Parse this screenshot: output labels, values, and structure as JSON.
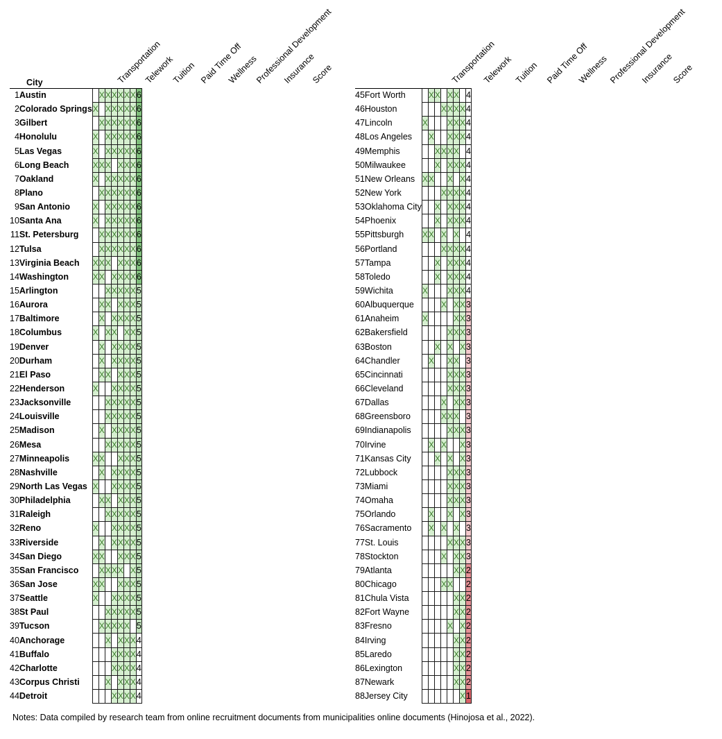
{
  "headers": {
    "city": "City",
    "columns": [
      "Transportation",
      "Telework",
      "Tuition",
      "Paid Time Off",
      "Wellness",
      "Professional Development",
      "Insurance",
      "Score"
    ]
  },
  "mark": "X",
  "left_rows": [
    {
      "n": "1",
      "city": "Austin",
      "marks": [
        0,
        1,
        1,
        1,
        1,
        1,
        1
      ],
      "score": "6"
    },
    {
      "n": "2",
      "city": "Colorado Springs",
      "marks": [
        1,
        0,
        1,
        1,
        1,
        1,
        1
      ],
      "score": "6"
    },
    {
      "n": "3",
      "city": "Gilbert",
      "marks": [
        0,
        1,
        1,
        1,
        1,
        1,
        1
      ],
      "score": "6"
    },
    {
      "n": "4",
      "city": "Honolulu",
      "marks": [
        1,
        0,
        1,
        1,
        1,
        1,
        1
      ],
      "score": "6"
    },
    {
      "n": "5",
      "city": "Las Vegas",
      "marks": [
        1,
        0,
        1,
        1,
        1,
        1,
        1
      ],
      "score": "6"
    },
    {
      "n": "6",
      "city": "Long Beach",
      "marks": [
        1,
        1,
        1,
        0,
        1,
        1,
        1
      ],
      "score": "6"
    },
    {
      "n": "7",
      "city": "Oakland",
      "marks": [
        1,
        0,
        1,
        1,
        1,
        1,
        1
      ],
      "score": "6"
    },
    {
      "n": "8",
      "city": "Plano",
      "marks": [
        0,
        1,
        1,
        1,
        1,
        1,
        1
      ],
      "score": "6"
    },
    {
      "n": "9",
      "city": "San Antonio",
      "marks": [
        1,
        0,
        1,
        1,
        1,
        1,
        1
      ],
      "score": "6"
    },
    {
      "n": "10",
      "city": "Santa Ana",
      "marks": [
        1,
        0,
        1,
        1,
        1,
        1,
        1
      ],
      "score": "6"
    },
    {
      "n": "11",
      "city": "St. Petersburg",
      "marks": [
        0,
        1,
        1,
        1,
        1,
        1,
        1
      ],
      "score": "6"
    },
    {
      "n": "12",
      "city": "Tulsa",
      "marks": [
        0,
        1,
        1,
        1,
        1,
        1,
        1
      ],
      "score": "6"
    },
    {
      "n": "13",
      "city": "Virginia Beach",
      "marks": [
        1,
        1,
        1,
        0,
        1,
        1,
        1
      ],
      "score": "6"
    },
    {
      "n": "14",
      "city": "Washington",
      "marks": [
        1,
        1,
        0,
        1,
        1,
        1,
        1
      ],
      "score": "6"
    },
    {
      "n": "15",
      "city": "Arlington",
      "marks": [
        0,
        0,
        1,
        1,
        1,
        1,
        1
      ],
      "score": "5"
    },
    {
      "n": "16",
      "city": "Aurora",
      "marks": [
        0,
        1,
        1,
        0,
        1,
        1,
        1
      ],
      "score": "5"
    },
    {
      "n": "17",
      "city": "Baltimore",
      "marks": [
        0,
        1,
        0,
        1,
        1,
        1,
        1
      ],
      "score": "5"
    },
    {
      "n": "18",
      "city": "Columbus",
      "marks": [
        1,
        0,
        1,
        1,
        0,
        1,
        1
      ],
      "score": "5"
    },
    {
      "n": "19",
      "city": "Denver",
      "marks": [
        0,
        1,
        0,
        1,
        1,
        1,
        1
      ],
      "score": "5"
    },
    {
      "n": "20",
      "city": "Durham",
      "marks": [
        0,
        1,
        0,
        1,
        1,
        1,
        1
      ],
      "score": "5"
    },
    {
      "n": "21",
      "city": "El Paso",
      "marks": [
        0,
        1,
        1,
        0,
        1,
        1,
        1
      ],
      "score": "5"
    },
    {
      "n": "22",
      "city": "Henderson",
      "marks": [
        1,
        0,
        0,
        1,
        1,
        1,
        1
      ],
      "score": "5"
    },
    {
      "n": "23",
      "city": "Jacksonville",
      "marks": [
        0,
        0,
        1,
        1,
        1,
        1,
        1
      ],
      "score": "5"
    },
    {
      "n": "24",
      "city": "Louisville",
      "marks": [
        0,
        0,
        1,
        1,
        1,
        1,
        1
      ],
      "score": "5"
    },
    {
      "n": "25",
      "city": "Madison",
      "marks": [
        0,
        1,
        0,
        1,
        1,
        1,
        1
      ],
      "score": "5"
    },
    {
      "n": "26",
      "city": "Mesa",
      "marks": [
        0,
        0,
        1,
        1,
        1,
        1,
        1
      ],
      "score": "5"
    },
    {
      "n": "27",
      "city": "Minneapolis",
      "marks": [
        1,
        1,
        0,
        0,
        1,
        1,
        1
      ],
      "score": "5"
    },
    {
      "n": "28",
      "city": "Nashville",
      "marks": [
        0,
        1,
        0,
        1,
        1,
        1,
        1
      ],
      "score": "5"
    },
    {
      "n": "29",
      "city": "North Las Vegas",
      "marks": [
        1,
        0,
        0,
        1,
        1,
        1,
        1
      ],
      "score": "5"
    },
    {
      "n": "30",
      "city": "Philadelphia",
      "marks": [
        0,
        1,
        1,
        0,
        1,
        1,
        1
      ],
      "score": "5"
    },
    {
      "n": "31",
      "city": "Raleigh",
      "marks": [
        0,
        0,
        1,
        1,
        1,
        1,
        1
      ],
      "score": "5"
    },
    {
      "n": "32",
      "city": "Reno",
      "marks": [
        1,
        0,
        0,
        1,
        1,
        1,
        1
      ],
      "score": "5"
    },
    {
      "n": "33",
      "city": "Riverside",
      "marks": [
        0,
        1,
        0,
        1,
        1,
        1,
        1
      ],
      "score": "5"
    },
    {
      "n": "34",
      "city": "San Diego",
      "marks": [
        1,
        1,
        0,
        0,
        1,
        1,
        1
      ],
      "score": "5"
    },
    {
      "n": "35",
      "city": "San Francisco",
      "marks": [
        0,
        1,
        1,
        1,
        1,
        0,
        1
      ],
      "score": "5"
    },
    {
      "n": "36",
      "city": "San Jose",
      "marks": [
        1,
        1,
        0,
        0,
        1,
        1,
        1
      ],
      "score": "5"
    },
    {
      "n": "37",
      "city": "Seattle",
      "marks": [
        1,
        0,
        0,
        1,
        1,
        1,
        1
      ],
      "score": "5"
    },
    {
      "n": "38",
      "city": "St Paul",
      "marks": [
        0,
        0,
        1,
        1,
        1,
        1,
        1
      ],
      "score": "5"
    },
    {
      "n": "39",
      "city": "Tucson",
      "marks": [
        0,
        1,
        1,
        1,
        1,
        1,
        0
      ],
      "score": "5"
    },
    {
      "n": "40",
      "city": "Anchorage",
      "marks": [
        0,
        0,
        1,
        0,
        1,
        1,
        1
      ],
      "score": "4"
    },
    {
      "n": "41",
      "city": "Buffalo",
      "marks": [
        0,
        0,
        0,
        1,
        1,
        1,
        1
      ],
      "score": "4"
    },
    {
      "n": "42",
      "city": "Charlotte",
      "marks": [
        0,
        0,
        0,
        1,
        1,
        1,
        1
      ],
      "score": "4"
    },
    {
      "n": "43",
      "city": "Corpus Christi",
      "marks": [
        0,
        0,
        1,
        0,
        1,
        1,
        1
      ],
      "score": "4"
    },
    {
      "n": "44",
      "city": "Detroit",
      "marks": [
        0,
        0,
        0,
        1,
        1,
        1,
        1
      ],
      "score": "4"
    }
  ],
  "right_rows": [
    {
      "n": "45",
      "city": "Fort Worth",
      "marks": [
        0,
        1,
        1,
        0,
        1,
        1,
        0
      ],
      "score": "4"
    },
    {
      "n": "46",
      "city": "Houston",
      "marks": [
        0,
        0,
        0,
        1,
        1,
        1,
        1
      ],
      "score": "4"
    },
    {
      "n": "47",
      "city": "Lincoln",
      "marks": [
        1,
        0,
        0,
        0,
        1,
        1,
        1
      ],
      "score": "4"
    },
    {
      "n": "48",
      "city": "Los Angeles",
      "marks": [
        0,
        1,
        0,
        0,
        1,
        1,
        1
      ],
      "score": "4"
    },
    {
      "n": "49",
      "city": "Memphis",
      "marks": [
        0,
        0,
        1,
        1,
        1,
        1,
        0
      ],
      "score": "4"
    },
    {
      "n": "50",
      "city": "Milwaukee",
      "marks": [
        0,
        0,
        1,
        0,
        1,
        1,
        1
      ],
      "score": "4"
    },
    {
      "n": "51",
      "city": "New Orleans",
      "marks": [
        1,
        1,
        0,
        0,
        1,
        0,
        1
      ],
      "score": "4"
    },
    {
      "n": "52",
      "city": "New York",
      "marks": [
        0,
        0,
        0,
        1,
        1,
        1,
        1
      ],
      "score": "4"
    },
    {
      "n": "53",
      "city": "Oklahoma City",
      "marks": [
        0,
        0,
        1,
        0,
        1,
        1,
        1
      ],
      "score": "4"
    },
    {
      "n": "54",
      "city": "Phoenix",
      "marks": [
        0,
        0,
        1,
        0,
        1,
        1,
        1
      ],
      "score": "4"
    },
    {
      "n": "55",
      "city": "Pittsburgh",
      "marks": [
        1,
        1,
        0,
        1,
        0,
        1,
        0
      ],
      "score": "4"
    },
    {
      "n": "56",
      "city": "Portland",
      "marks": [
        0,
        0,
        0,
        1,
        1,
        1,
        1
      ],
      "score": "4"
    },
    {
      "n": "57",
      "city": "Tampa",
      "marks": [
        0,
        0,
        1,
        0,
        1,
        1,
        1
      ],
      "score": "4"
    },
    {
      "n": "58",
      "city": "Toledo",
      "marks": [
        0,
        0,
        1,
        0,
        1,
        1,
        1
      ],
      "score": "4"
    },
    {
      "n": "59",
      "city": "Wichita",
      "marks": [
        1,
        0,
        0,
        0,
        1,
        1,
        1
      ],
      "score": "4"
    },
    {
      "n": "60",
      "city": "Albuquerque",
      "marks": [
        0,
        0,
        0,
        1,
        0,
        1,
        1
      ],
      "score": "3"
    },
    {
      "n": "61",
      "city": "Anaheim",
      "marks": [
        1,
        0,
        0,
        0,
        0,
        1,
        1
      ],
      "score": "3"
    },
    {
      "n": "62",
      "city": "Bakersfield",
      "marks": [
        0,
        0,
        0,
        0,
        1,
        1,
        1
      ],
      "score": "3"
    },
    {
      "n": "63",
      "city": "Boston",
      "marks": [
        0,
        0,
        1,
        0,
        1,
        0,
        1
      ],
      "score": "3"
    },
    {
      "n": "64",
      "city": "Chandler",
      "marks": [
        0,
        1,
        0,
        0,
        1,
        1,
        0
      ],
      "score": "3"
    },
    {
      "n": "65",
      "city": "Cincinnati",
      "marks": [
        0,
        0,
        0,
        0,
        1,
        1,
        1
      ],
      "score": "3"
    },
    {
      "n": "66",
      "city": "Cleveland",
      "marks": [
        0,
        0,
        0,
        0,
        1,
        1,
        1
      ],
      "score": "3"
    },
    {
      "n": "67",
      "city": "Dallas",
      "marks": [
        0,
        0,
        0,
        1,
        0,
        1,
        1
      ],
      "score": "3"
    },
    {
      "n": "68",
      "city": "Greensboro",
      "marks": [
        0,
        0,
        0,
        1,
        1,
        1,
        0
      ],
      "score": "3"
    },
    {
      "n": "69",
      "city": "Indianapolis",
      "marks": [
        0,
        0,
        0,
        0,
        1,
        1,
        1
      ],
      "score": "3"
    },
    {
      "n": "70",
      "city": "Irvine",
      "marks": [
        0,
        1,
        0,
        1,
        0,
        0,
        1
      ],
      "score": "3"
    },
    {
      "n": "71",
      "city": "Kansas City",
      "marks": [
        0,
        0,
        1,
        0,
        1,
        0,
        1
      ],
      "score": "3"
    },
    {
      "n": "72",
      "city": "Lubbock",
      "marks": [
        0,
        0,
        0,
        0,
        1,
        1,
        1
      ],
      "score": "3"
    },
    {
      "n": "73",
      "city": "Miami",
      "marks": [
        0,
        0,
        0,
        0,
        1,
        1,
        1
      ],
      "score": "3"
    },
    {
      "n": "74",
      "city": "Omaha",
      "marks": [
        0,
        0,
        0,
        0,
        1,
        1,
        1
      ],
      "score": "3"
    },
    {
      "n": "75",
      "city": "Orlando",
      "marks": [
        0,
        1,
        0,
        0,
        1,
        0,
        1
      ],
      "score": "3"
    },
    {
      "n": "76",
      "city": "Sacramento",
      "marks": [
        0,
        1,
        0,
        1,
        0,
        1,
        0
      ],
      "score": "3"
    },
    {
      "n": "77",
      "city": "St. Louis",
      "marks": [
        0,
        0,
        0,
        0,
        1,
        1,
        1
      ],
      "score": "3"
    },
    {
      "n": "78",
      "city": "Stockton",
      "marks": [
        0,
        0,
        0,
        1,
        0,
        1,
        1
      ],
      "score": "3"
    },
    {
      "n": "79",
      "city": "Atlanta",
      "marks": [
        0,
        0,
        0,
        0,
        0,
        1,
        1
      ],
      "score": "2"
    },
    {
      "n": "80",
      "city": "Chicago",
      "marks": [
        0,
        0,
        0,
        1,
        1,
        0,
        0
      ],
      "score": "2"
    },
    {
      "n": "81",
      "city": "Chula Vista",
      "marks": [
        0,
        0,
        0,
        0,
        0,
        1,
        1
      ],
      "score": "2"
    },
    {
      "n": "82",
      "city": "Fort Wayne",
      "marks": [
        0,
        0,
        0,
        0,
        0,
        1,
        1
      ],
      "score": "2"
    },
    {
      "n": "83",
      "city": "Fresno",
      "marks": [
        0,
        0,
        0,
        0,
        1,
        0,
        1
      ],
      "score": "2"
    },
    {
      "n": "84",
      "city": "Irving",
      "marks": [
        0,
        0,
        0,
        0,
        0,
        1,
        1
      ],
      "score": "2"
    },
    {
      "n": "85",
      "city": "Laredo",
      "marks": [
        0,
        0,
        0,
        0,
        0,
        1,
        1
      ],
      "score": "2"
    },
    {
      "n": "86",
      "city": "Lexington",
      "marks": [
        0,
        0,
        0,
        0,
        0,
        1,
        1
      ],
      "score": "2"
    },
    {
      "n": "87",
      "city": "Newark",
      "marks": [
        0,
        0,
        0,
        0,
        0,
        1,
        1
      ],
      "score": "2"
    },
    {
      "n": "88",
      "city": "Jersey City",
      "marks": [
        0,
        0,
        0,
        0,
        0,
        0,
        1
      ],
      "score": "1"
    }
  ],
  "notes": "Notes: Data compiled by research team from online recruitment documents from municipalities online documents (Hinojosa et al., 2022)."
}
